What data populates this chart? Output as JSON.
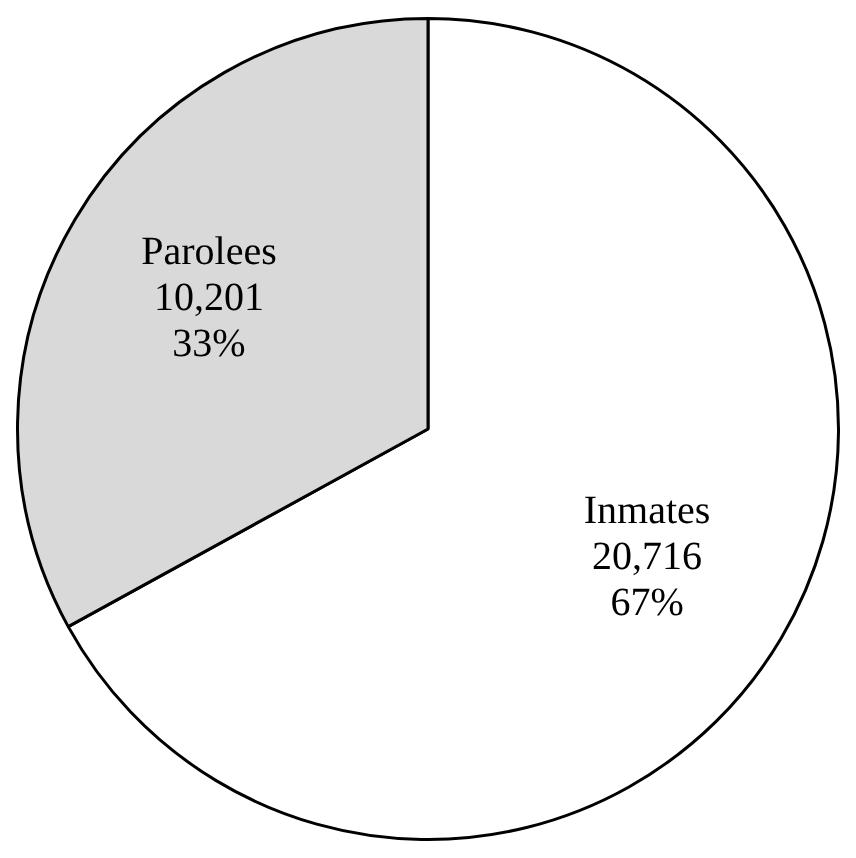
{
  "chart_data": {
    "type": "pie",
    "categories": [
      "Inmates",
      "Parolees"
    ],
    "values": [
      20716,
      10201
    ],
    "colors": [
      "#ffffff",
      "#d9d9d9"
    ],
    "value_labels": [
      "20,716\n67%",
      "10,201\n33%"
    ]
  }
}
